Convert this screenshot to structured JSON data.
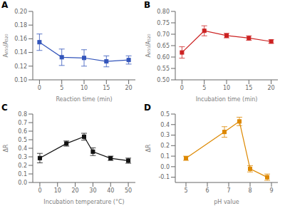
{
  "chart_data": [
    {
      "type": "line",
      "title": "A",
      "x_label": "Reaction time (min)",
      "y_label": "A₆₅₀/A₅₂₀",
      "x": [
        0,
        5,
        10,
        15,
        20
      ],
      "series": [
        {
          "values": [
            0.155,
            0.133,
            0.132,
            0.127,
            0.129
          ],
          "errors": [
            0.012,
            0.012,
            0.012,
            0.008,
            0.006
          ],
          "color": "#3355bb",
          "marker": "square",
          "line_style": "solid"
        }
      ],
      "xlim": [
        -1.5,
        21.5
      ],
      "xticks": [
        0,
        5,
        10,
        15,
        20
      ],
      "ylim": [
        0.1,
        0.2
      ],
      "yticks": [
        {
          "value": 0.1,
          "label": "0.10"
        },
        0.12,
        0.14,
        0.16,
        0.18,
        {
          "value": 0.2,
          "label": "0.20"
        }
      ],
      "grid": false
    },
    {
      "type": "line",
      "title": "B",
      "x_label": "Incubation time (min)",
      "y_label": "A₆₅₀/A₅₂₀",
      "x": [
        0,
        5,
        10,
        15,
        20
      ],
      "series": [
        {
          "values": [
            0.62,
            0.715,
            0.694,
            0.683,
            0.668
          ],
          "errors": [
            0.025,
            0.022,
            0.01,
            0.01,
            0.008
          ],
          "color": "#cc2222",
          "marker": "square",
          "line_style": "solid"
        }
      ],
      "xlim": [
        -1.5,
        21.5
      ],
      "xticks": [
        0,
        5,
        10,
        15,
        20
      ],
      "ylim": [
        0.5,
        0.8
      ],
      "yticks": [
        {
          "value": 0.5,
          "label": "0.50"
        },
        0.55,
        {
          "value": 0.6,
          "label": "0.60"
        },
        0.65,
        {
          "value": 0.7,
          "label": "0.70"
        },
        0.75,
        {
          "value": 0.8,
          "label": "0.80"
        }
      ],
      "grid": false
    },
    {
      "type": "line",
      "title": "C",
      "x_label": "Incubation temperature (°C)",
      "y_label": "ΔR",
      "x": [
        0,
        15,
        25,
        30,
        40,
        50
      ],
      "series": [
        {
          "values": [
            0.285,
            0.455,
            0.535,
            0.36,
            0.283,
            0.255
          ],
          "errors": [
            0.055,
            0.03,
            0.04,
            0.045,
            0.025,
            0.03
          ],
          "color": "#111111",
          "marker": "square",
          "line_style": "solid"
        }
      ],
      "xlim": [
        -4,
        54
      ],
      "xticks": [
        0,
        10,
        20,
        30,
        40,
        50
      ],
      "ylim": [
        0.0,
        0.8
      ],
      "yticks": [
        {
          "value": 0,
          "label": "0.0"
        },
        0.1,
        0.2,
        0.3,
        0.4,
        0.5,
        0.6,
        0.7,
        0.8
      ],
      "grid": false
    },
    {
      "type": "line",
      "title": "D",
      "x_label": "pH value",
      "y_label": "ΔR",
      "x": [
        5,
        6.8,
        7.5,
        8,
        8.8
      ],
      "series": [
        {
          "values": [
            0.08,
            0.33,
            0.43,
            -0.02,
            -0.1
          ],
          "errors": [
            0.02,
            0.05,
            0.04,
            0.03,
            0.03
          ],
          "color": "#dd8800",
          "marker": "square",
          "line_style": "solid"
        }
      ],
      "xlim": [
        4.5,
        9.3
      ],
      "xticks": [
        5,
        6,
        7,
        8,
        9
      ],
      "ylim": [
        -0.15,
        0.5
      ],
      "yticks": [
        -0.1,
        {
          "value": 0,
          "label": "0.0"
        },
        0.1,
        0.2,
        0.3,
        0.4,
        0.5
      ],
      "grid": false
    }
  ]
}
